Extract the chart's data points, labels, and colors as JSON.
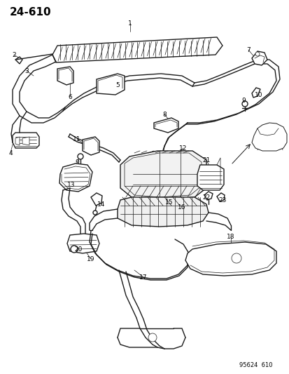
{
  "title": "24-610",
  "footer": "95624  610",
  "bg_color": "#ffffff",
  "line_color": "#1a1a1a",
  "title_fontsize": 11,
  "label_fontsize": 6.5,
  "figsize": [
    4.14,
    5.33
  ],
  "dpi": 100,
  "xlim": [
    0,
    414
  ],
  "ylim": [
    0,
    533
  ]
}
